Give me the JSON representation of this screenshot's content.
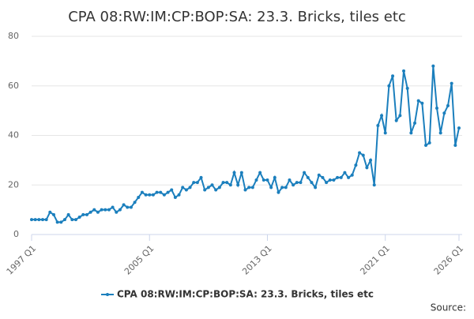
{
  "chart_data": {
    "type": "line",
    "title": "CPA 08:RW:IM:CP:BOP:SA: 23.3. Bricks, tiles etc",
    "source": "Source:",
    "categories": [
      "1997 Q1",
      null,
      null,
      null,
      null,
      null,
      null,
      null,
      null,
      null,
      null,
      null,
      null,
      null,
      null,
      null,
      null,
      null,
      null,
      null,
      null,
      null,
      null,
      null,
      null,
      null,
      null,
      null,
      null,
      null,
      null,
      null,
      "2005 Q1",
      null,
      null,
      null,
      null,
      null,
      null,
      null,
      null,
      null,
      null,
      null,
      null,
      null,
      null,
      null,
      null,
      null,
      null,
      null,
      null,
      null,
      null,
      null,
      null,
      null,
      null,
      null,
      null,
      null,
      null,
      null,
      "2013 Q1",
      null,
      null,
      null,
      null,
      null,
      null,
      null,
      null,
      null,
      null,
      null,
      null,
      null,
      null,
      null,
      null,
      null,
      null,
      null,
      null,
      null,
      null,
      null,
      null,
      null,
      null,
      null,
      null,
      null,
      null,
      null,
      "2021 Q1",
      null,
      null,
      null,
      null,
      null,
      null,
      null,
      null,
      null,
      null,
      null,
      null,
      null,
      null,
      null,
      null,
      null,
      null,
      null,
      "2026 Q1"
    ],
    "series": [
      {
        "name": "CPA 08:RW:IM:CP:BOP:SA: 23.3. Bricks, tiles etc",
        "color": "#1b7fbd",
        "values": [
          6,
          6,
          6,
          6,
          6,
          9,
          8,
          5,
          5,
          6,
          8,
          6,
          6,
          7,
          8,
          8,
          9,
          10,
          9,
          10,
          10,
          10,
          11,
          9,
          10,
          12,
          11,
          11,
          13,
          15,
          17,
          16,
          16,
          16,
          17,
          17,
          16,
          17,
          18,
          15,
          16,
          19,
          18,
          19,
          21,
          21,
          23,
          18,
          19,
          20,
          18,
          19,
          21,
          21,
          20,
          25,
          20,
          25,
          18,
          19,
          19,
          22,
          25,
          22,
          22,
          19,
          23,
          17,
          19,
          19,
          22,
          20,
          21,
          21,
          25,
          23,
          21,
          19,
          24,
          23,
          21,
          22,
          22,
          23,
          23,
          25,
          23,
          24,
          28,
          33,
          32,
          27,
          30,
          20,
          44,
          48,
          41,
          60,
          64,
          46,
          48,
          66,
          59,
          41,
          45,
          54,
          53,
          36,
          37,
          68,
          51,
          41,
          49,
          52,
          61,
          36,
          43
        ]
      }
    ],
    "ylim": [
      0,
      80
    ],
    "yticks": [
      0,
      20,
      40,
      60,
      80
    ],
    "grid": true
  }
}
